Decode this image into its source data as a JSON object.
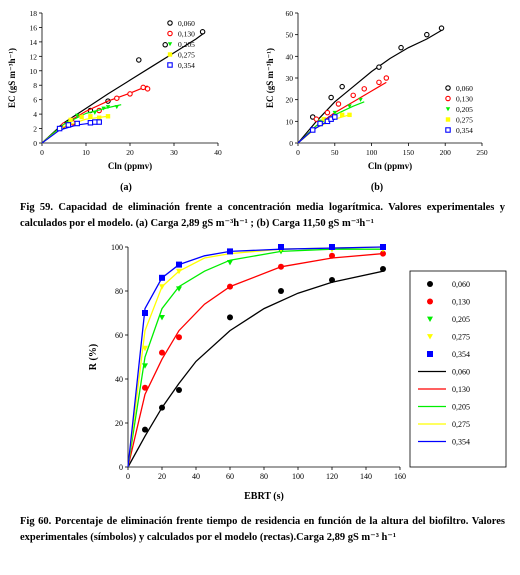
{
  "figure_59": {
    "caption": "Fig 59. Capacidad de eliminación frente a concentración media logarítmica. Valores experimentales y calculados por el modelo. (a) Carga 2,89 gS m⁻³h⁻¹ ; (b) Carga 11,50 gS m⁻³h⁻¹",
    "panel_a_label": "(a)",
    "panel_b_label": "(b)"
  },
  "figure_60": {
    "caption": "Fig 60. Porcentaje de eliminación frente tiempo de residencia en función de la altura del biofiltro. Valores experimentales (símbolos) y calculados por el modelo (rectas).Carga 2,89 gS m⁻³ h⁻¹"
  },
  "colors": {
    "s060": "#000000",
    "s130": "#ff0000",
    "s205": "#00ee00",
    "s275": "#ffff00",
    "s354": "#0000ff"
  },
  "chart_data": [
    {
      "id": "59a",
      "type": "scatter",
      "xlabel": "Cln (ppmv)",
      "ylabel": "EC (gS m⁻³h⁻¹)",
      "xlim": [
        0,
        40
      ],
      "ylim": [
        0,
        18
      ],
      "xticks": [
        0,
        10,
        20,
        30,
        40
      ],
      "yticks": [
        0,
        2,
        4,
        6,
        8,
        10,
        12,
        14,
        16,
        18
      ],
      "legend_position": "top-right",
      "series": [
        {
          "name": "0,060",
          "points": [
            [
              4.5,
              2.2
            ],
            [
              11,
              4.5
            ],
            [
              15,
              5.8
            ],
            [
              22,
              11.5
            ],
            [
              28,
              13.6
            ],
            [
              36.5,
              15.4
            ]
          ],
          "fit": [
            [
              0,
              0
            ],
            [
              5,
              2.8
            ],
            [
              10,
              4.8
            ],
            [
              15,
              6.8
            ],
            [
              20,
              8.7
            ],
            [
              25,
              10.6
            ],
            [
              30,
              12.5
            ],
            [
              35,
              14.4
            ],
            [
              37,
              15.3
            ]
          ]
        },
        {
          "name": "0,130",
          "points": [
            [
              5,
              2.5
            ],
            [
              7,
              2.8
            ],
            [
              13,
              4.5
            ],
            [
              17,
              6.2
            ],
            [
              20,
              6.8
            ],
            [
              23,
              7.7
            ],
            [
              24,
              7.5
            ]
          ],
          "fit": [
            [
              0,
              0
            ],
            [
              5,
              2.6
            ],
            [
              10,
              4.4
            ],
            [
              15,
              5.8
            ],
            [
              20,
              6.9
            ],
            [
              24,
              7.9
            ]
          ]
        },
        {
          "name": "0,205",
          "points": [
            [
              6,
              2.8
            ],
            [
              8,
              3.8
            ],
            [
              12,
              4.2
            ],
            [
              14,
              4.8
            ],
            [
              15,
              5.0
            ],
            [
              17,
              5.0
            ]
          ],
          "fit": [
            [
              0,
              0
            ],
            [
              5,
              2.6
            ],
            [
              10,
              4.1
            ],
            [
              15,
              4.9
            ],
            [
              18,
              5.3
            ]
          ]
        },
        {
          "name": "0,275",
          "points": [
            [
              6.5,
              3.2
            ],
            [
              9,
              3.6
            ],
            [
              11,
              3.7
            ],
            [
              13,
              3.5
            ],
            [
              15,
              3.7
            ]
          ],
          "fit": [
            [
              0,
              0
            ],
            [
              5,
              2.3
            ],
            [
              10,
              3.3
            ],
            [
              15,
              3.7
            ]
          ]
        },
        {
          "name": "0,354",
          "points": [
            [
              4,
              2.0
            ],
            [
              6,
              2.5
            ],
            [
              8,
              2.7
            ],
            [
              11,
              2.8
            ],
            [
              12,
              2.9
            ],
            [
              13,
              2.9
            ]
          ],
          "fit": [
            [
              0,
              0
            ],
            [
              4,
              1.8
            ],
            [
              8,
              2.5
            ],
            [
              13,
              2.9
            ]
          ]
        }
      ]
    },
    {
      "id": "59b",
      "type": "scatter",
      "xlabel": "Cln (ppmv)",
      "ylabel": "EC (gS m⁻³h⁻¹)",
      "xlim": [
        0,
        250
      ],
      "ylim": [
        0,
        60
      ],
      "xticks": [
        0,
        50,
        100,
        150,
        200,
        250
      ],
      "yticks": [
        0,
        10,
        20,
        30,
        40,
        50,
        60
      ],
      "legend_position": "right",
      "series": [
        {
          "name": "0,060",
          "points": [
            [
              20,
              12
            ],
            [
              45,
              21
            ],
            [
              60,
              26
            ],
            [
              110,
              35
            ],
            [
              140,
              44
            ],
            [
              175,
              50
            ],
            [
              195,
              53
            ]
          ],
          "fit": [
            [
              0,
              0
            ],
            [
              25,
              10
            ],
            [
              50,
              19
            ],
            [
              75,
              26
            ],
            [
              100,
              33
            ],
            [
              125,
              39
            ],
            [
              150,
              44
            ],
            [
              175,
              48
            ],
            [
              195,
              52
            ]
          ]
        },
        {
          "name": "0,130",
          "points": [
            [
              25,
              11
            ],
            [
              40,
              14
            ],
            [
              55,
              18
            ],
            [
              75,
              22
            ],
            [
              90,
              25
            ],
            [
              110,
              28
            ],
            [
              120,
              30
            ]
          ],
          "fit": [
            [
              0,
              0
            ],
            [
              25,
              8
            ],
            [
              50,
              14
            ],
            [
              75,
              19
            ],
            [
              100,
              24
            ],
            [
              120,
              28
            ]
          ]
        },
        {
          "name": "0,205",
          "points": [
            [
              30,
              10
            ],
            [
              50,
              14
            ],
            [
              70,
              17
            ],
            [
              85,
              20
            ]
          ],
          "fit": [
            [
              0,
              0
            ],
            [
              25,
              8
            ],
            [
              50,
              13
            ],
            [
              75,
              17
            ],
            [
              90,
              19
            ]
          ]
        },
        {
          "name": "0,275",
          "points": [
            [
              35,
              11
            ],
            [
              50,
              12
            ],
            [
              60,
              13
            ],
            [
              70,
              13
            ]
          ],
          "fit": [
            [
              0,
              0
            ],
            [
              25,
              7
            ],
            [
              50,
              11
            ],
            [
              70,
              13
            ]
          ]
        },
        {
          "name": "0,354",
          "points": [
            [
              20,
              6
            ],
            [
              30,
              9
            ],
            [
              40,
              10
            ],
            [
              45,
              11
            ],
            [
              50,
              12
            ]
          ],
          "fit": [
            [
              0,
              0
            ],
            [
              20,
              6
            ],
            [
              40,
              10
            ],
            [
              50,
              11
            ]
          ]
        }
      ]
    },
    {
      "id": "60",
      "type": "scatter",
      "xlabel": "EBRT (s)",
      "ylabel": "R (%)",
      "xlim": [
        0,
        160
      ],
      "ylim": [
        0,
        100
      ],
      "xticks": [
        0,
        20,
        40,
        60,
        80,
        100,
        120,
        140,
        160
      ],
      "yticks": [
        0,
        20,
        40,
        60,
        80,
        100
      ],
      "legend_position": "right",
      "series": [
        {
          "name": "0,060",
          "points": [
            [
              10,
              17
            ],
            [
              20,
              27
            ],
            [
              30,
              35
            ],
            [
              60,
              68
            ],
            [
              90,
              80
            ],
            [
              120,
              85
            ],
            [
              150,
              90
            ]
          ],
          "fit": [
            [
              0,
              0
            ],
            [
              10,
              14
            ],
            [
              20,
              27
            ],
            [
              30,
              38
            ],
            [
              40,
              48
            ],
            [
              60,
              62
            ],
            [
              80,
              72
            ],
            [
              100,
              79
            ],
            [
              120,
              84
            ],
            [
              150,
              89
            ]
          ]
        },
        {
          "name": "0,130",
          "points": [
            [
              10,
              36
            ],
            [
              20,
              52
            ],
            [
              30,
              59
            ],
            [
              60,
              82
            ],
            [
              90,
              91
            ],
            [
              120,
              96
            ],
            [
              150,
              97
            ]
          ],
          "fit": [
            [
              0,
              0
            ],
            [
              10,
              33
            ],
            [
              20,
              49
            ],
            [
              30,
              62
            ],
            [
              45,
              74
            ],
            [
              60,
              82
            ],
            [
              90,
              91
            ],
            [
              120,
              95
            ],
            [
              150,
              97
            ]
          ]
        },
        {
          "name": "0,205",
          "points": [
            [
              10,
              46
            ],
            [
              20,
              68
            ],
            [
              30,
              81
            ],
            [
              60,
              93
            ],
            [
              90,
              98
            ],
            [
              120,
              99
            ],
            [
              150,
              99
            ]
          ],
          "fit": [
            [
              0,
              0
            ],
            [
              10,
              50
            ],
            [
              20,
              72
            ],
            [
              30,
              82
            ],
            [
              45,
              89
            ],
            [
              60,
              94
            ],
            [
              90,
              98
            ],
            [
              120,
              99
            ],
            [
              150,
              99
            ]
          ]
        },
        {
          "name": "0,275",
          "points": [
            [
              10,
              54
            ],
            [
              20,
              82
            ],
            [
              30,
              89
            ],
            [
              60,
              98
            ],
            [
              90,
              99
            ],
            [
              120,
              99
            ],
            [
              150,
              99
            ]
          ],
          "fit": [
            [
              0,
              0
            ],
            [
              10,
              62
            ],
            [
              20,
              82
            ],
            [
              30,
              89
            ],
            [
              45,
              95
            ],
            [
              60,
              97
            ],
            [
              90,
              99
            ],
            [
              150,
              100
            ]
          ]
        },
        {
          "name": "0,354",
          "points": [
            [
              10,
              70
            ],
            [
              20,
              86
            ],
            [
              30,
              92
            ],
            [
              60,
              98
            ],
            [
              90,
              100
            ],
            [
              120,
              100
            ],
            [
              150,
              100
            ]
          ],
          "fit": [
            [
              0,
              0
            ],
            [
              10,
              72
            ],
            [
              20,
              86
            ],
            [
              30,
              92
            ],
            [
              45,
              96
            ],
            [
              60,
              98
            ],
            [
              90,
              99
            ],
            [
              150,
              100
            ]
          ]
        }
      ]
    }
  ]
}
